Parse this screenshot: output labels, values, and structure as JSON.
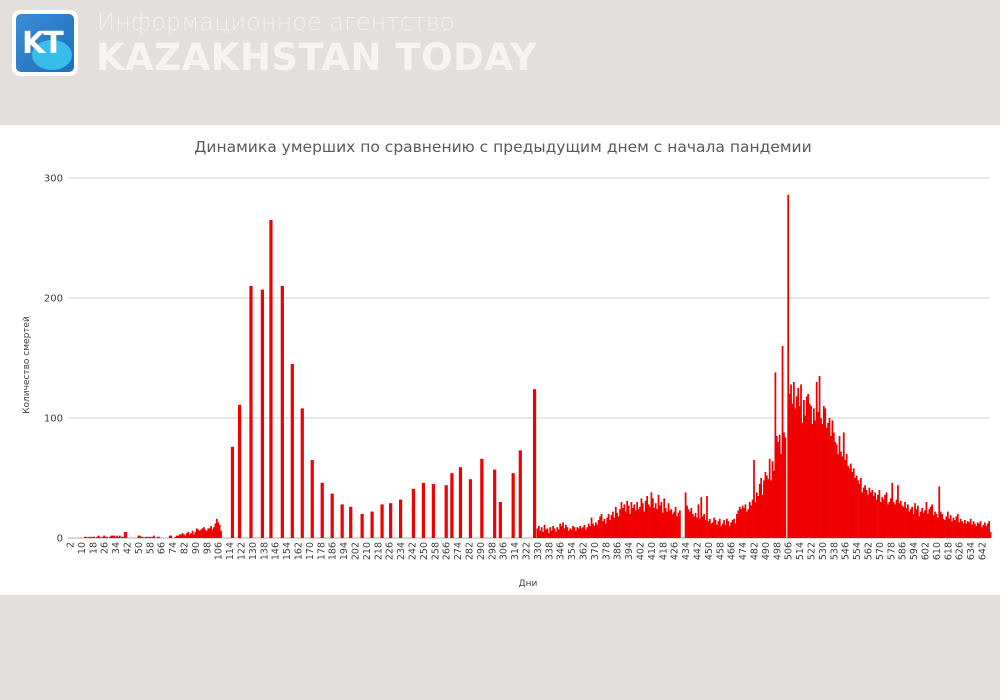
{
  "header": {
    "logo_text": "KT",
    "subtitle": "Информационное агентство",
    "brand": "KAZAKHSTAN TODAY"
  },
  "colors": {
    "bar": "#f00000",
    "grid": "#d9d9d9",
    "header_bg": "#e3dfdc"
  },
  "chart_data": {
    "type": "bar",
    "title": "Динамика умерших по сравнению с предыдущим днем с начала пандемии",
    "xlabel": "Дни",
    "ylabel": "Количество смертей",
    "ylim": [
      0,
      300
    ],
    "yticks": [
      0,
      100,
      200,
      300
    ],
    "grid": true,
    "x_start": 2,
    "xticks": [
      2,
      10,
      18,
      26,
      34,
      42,
      50,
      58,
      66,
      74,
      82,
      90,
      98,
      106,
      114,
      122,
      130,
      138,
      146,
      154,
      162,
      170,
      178,
      186,
      194,
      202,
      210,
      218,
      226,
      234,
      242,
      250,
      258,
      266,
      274,
      282,
      290,
      298,
      306,
      314,
      322,
      330,
      338,
      346,
      354,
      362,
      370,
      378,
      386,
      394,
      402,
      410,
      418,
      426,
      434,
      442,
      450,
      458,
      466,
      474,
      482,
      490,
      498,
      506,
      514,
      522,
      530,
      538,
      546,
      554,
      562,
      570,
      578,
      586,
      594,
      602,
      610,
      618,
      626,
      634,
      642
    ],
    "values": [
      0,
      0,
      0,
      0,
      0,
      0,
      0,
      0,
      0,
      0,
      0,
      1,
      0,
      0,
      1,
      0,
      1,
      1,
      0,
      1,
      2,
      1,
      0,
      1,
      2,
      1,
      1,
      0,
      1,
      2,
      2,
      2,
      1,
      2,
      1,
      2,
      0,
      1,
      0,
      5,
      0,
      0,
      0,
      0,
      0,
      0,
      0,
      0,
      2,
      2,
      1,
      1,
      0,
      1,
      1,
      0,
      1,
      0,
      1,
      2,
      0,
      0,
      1,
      0,
      0,
      0,
      0,
      0,
      0,
      0,
      2,
      2,
      0,
      0,
      1,
      2,
      2,
      3,
      3,
      4,
      3,
      2,
      4,
      5,
      3,
      4,
      6,
      3,
      5,
      8,
      7,
      6,
      7,
      8,
      9,
      7,
      6,
      8,
      8,
      10,
      7,
      9,
      12,
      16,
      13,
      11,
      6,
      0,
      0,
      0,
      0,
      0,
      0,
      0,
      76,
      0,
      0,
      0,
      0,
      111,
      0,
      0,
      0,
      0,
      0,
      0,
      0,
      210,
      0,
      0,
      0,
      0,
      0,
      0,
      0,
      207,
      0,
      0,
      0,
      0,
      0,
      265,
      0,
      0,
      0,
      0,
      0,
      0,
      0,
      210,
      0,
      0,
      0,
      0,
      0,
      0,
      145,
      0,
      0,
      0,
      0,
      0,
      0,
      108,
      0,
      0,
      0,
      0,
      0,
      0,
      65,
      0,
      0,
      0,
      0,
      0,
      0,
      46,
      0,
      0,
      0,
      0,
      0,
      0,
      37,
      0,
      0,
      0,
      0,
      0,
      0,
      28,
      0,
      0,
      0,
      0,
      0,
      26,
      0,
      0,
      0,
      0,
      0,
      0,
      0,
      20,
      0,
      0,
      0,
      0,
      0,
      0,
      22,
      0,
      0,
      0,
      0,
      0,
      0,
      28,
      0,
      0,
      0,
      0,
      0,
      29,
      0,
      0,
      0,
      0,
      0,
      0,
      32,
      0,
      0,
      0,
      0,
      0,
      0,
      0,
      0,
      41,
      0,
      0,
      0,
      0,
      0,
      0,
      46,
      0,
      0,
      0,
      0,
      0,
      0,
      45,
      0,
      0,
      0,
      0,
      0,
      0,
      0,
      0,
      44,
      0,
      0,
      0,
      54,
      0,
      0,
      0,
      0,
      0,
      59,
      0,
      0,
      0,
      0,
      0,
      0,
      49,
      0,
      0,
      0,
      0,
      0,
      0,
      0,
      66,
      0,
      0,
      0,
      0,
      0,
      0,
      0,
      0,
      57,
      0,
      0,
      0,
      30,
      0,
      0,
      0,
      0,
      0,
      0,
      0,
      0,
      54,
      0,
      0,
      0,
      0,
      73,
      0,
      0,
      0,
      0,
      0,
      0,
      0,
      0,
      0,
      124,
      0,
      8,
      10,
      6,
      9,
      5,
      11,
      7,
      8,
      4,
      9,
      6,
      10,
      8,
      5,
      9,
      7,
      12,
      10,
      13,
      8,
      11,
      9,
      6,
      8,
      7,
      10,
      9,
      6,
      9,
      8,
      10,
      8,
      9,
      11,
      7,
      9,
      12,
      10,
      17,
      12,
      10,
      13,
      11,
      15,
      18,
      20,
      14,
      16,
      12,
      17,
      20,
      15,
      19,
      22,
      17,
      26,
      21,
      18,
      24,
      30,
      25,
      28,
      22,
      31,
      27,
      20,
      30,
      25,
      28,
      23,
      30,
      24,
      26,
      33,
      29,
      22,
      31,
      35,
      28,
      26,
      38,
      33,
      25,
      29,
      24,
      36,
      27,
      30,
      21,
      33,
      25,
      22,
      29,
      23,
      24,
      20,
      22,
      26,
      18,
      21,
      23,
      0,
      0,
      0,
      38,
      27,
      24,
      22,
      25,
      20,
      18,
      21,
      17,
      28,
      16,
      34,
      18,
      20,
      15,
      35,
      14,
      16,
      12,
      13,
      17,
      15,
      11,
      14,
      16,
      10,
      12,
      15,
      11,
      16,
      14,
      10,
      13,
      15,
      16,
      12,
      20,
      23,
      26,
      24,
      27,
      25,
      28,
      22,
      24,
      30,
      27,
      32,
      65,
      30,
      38,
      35,
      45,
      50,
      36,
      48,
      55,
      52,
      49,
      66,
      48,
      64,
      56,
      138,
      85,
      80,
      86,
      70,
      160,
      88,
      84,
      0,
      286,
      120,
      128,
      112,
      130,
      108,
      118,
      125,
      110,
      128,
      96,
      115,
      102,
      118,
      120,
      112,
      110,
      95,
      108,
      98,
      130,
      105,
      135,
      100,
      95,
      110,
      108,
      92,
      96,
      100,
      85,
      98,
      88,
      80,
      78,
      70,
      85,
      72,
      68,
      88,
      65,
      70,
      60,
      58,
      62,
      55,
      58,
      50,
      52,
      48,
      45,
      50,
      38,
      42,
      44,
      40,
      36,
      42,
      38,
      40,
      35,
      38,
      32,
      36,
      40,
      30,
      34,
      32,
      36,
      38,
      28,
      30,
      33,
      46,
      30,
      28,
      32,
      44,
      29,
      31,
      27,
      26,
      30,
      25,
      28,
      22,
      24,
      26,
      20,
      29,
      24,
      27,
      18,
      22,
      25,
      21,
      23,
      30,
      20,
      24,
      26,
      28,
      19,
      22,
      20,
      17,
      43,
      22,
      20,
      16,
      15,
      18,
      22,
      16,
      19,
      14,
      17,
      15,
      18,
      20,
      13,
      16,
      14,
      12,
      15,
      12,
      14,
      13,
      16,
      11,
      14,
      12,
      10,
      13,
      12,
      14,
      9,
      11,
      13,
      10,
      12,
      14,
      5
    ]
  }
}
